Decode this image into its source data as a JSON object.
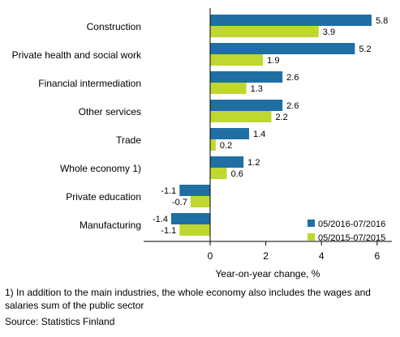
{
  "chart_data": {
    "type": "bar",
    "orientation": "horizontal",
    "categories": [
      "Construction",
      "Private health and social work",
      "Financial intermediation",
      "Other services",
      "Trade",
      "Whole economy 1)",
      "Private education",
      "Manufacturing"
    ],
    "series": [
      {
        "name": "05/2016-07/2016",
        "color": "#1f6fa5",
        "values": [
          5.8,
          5.2,
          2.6,
          2.6,
          1.4,
          1.2,
          -1.1,
          -1.4
        ]
      },
      {
        "name": "05/2015-07/2015",
        "color": "#bfd730",
        "values": [
          3.9,
          1.9,
          1.3,
          2.2,
          0.2,
          0.6,
          -0.7,
          -1.1
        ]
      }
    ],
    "value_labels": [
      [
        "5.8",
        "5.2",
        "2.6",
        "2.6",
        "1.4",
        "1.2",
        "-1.1",
        "-1.4"
      ],
      [
        "3.9",
        "1.9",
        "1.3",
        "2.2",
        "0.2",
        "0.6",
        "-0.7",
        "-1.1"
      ]
    ],
    "xlabel": "Year-on-year change, %",
    "xlim": [
      -2.4,
      6.6
    ],
    "xticks": [
      0,
      2,
      4,
      6
    ],
    "xtick_labels": [
      "0",
      "2",
      "4",
      "6"
    ],
    "grid": false,
    "legend_position": "bottom-right"
  },
  "footnote": "1) In addition to the main industries, the whole economy also includes the wages and salaries sum of the public sector",
  "source": "Source: Statistics Finland"
}
